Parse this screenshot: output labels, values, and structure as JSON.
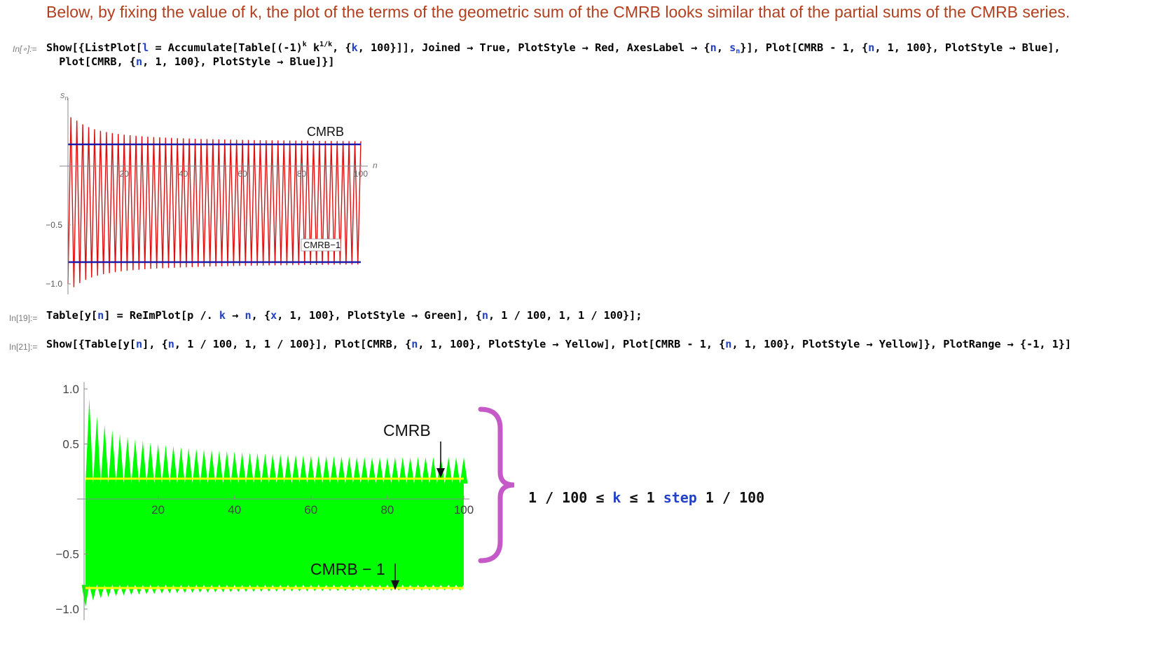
{
  "notebook": {
    "description": "Below, by fixing the value of k, the plot of the terms of the geometric sum of the CMRB looks similar that of the partial sums of the CMRB series.",
    "cells": {
      "c1_label": "In[∘]:=",
      "c2_label": "In[19]:=",
      "c3_label": "In[21]:="
    }
  },
  "plot1": {
    "y_axis_label": "s",
    "y_axis_label_sub": "n",
    "x_axis_label": "n",
    "cmrb_label": "CMRB",
    "cmrb1_label": "CMRB−1",
    "x_ticks": [
      "20",
      "40",
      "60",
      "80",
      "100"
    ],
    "y_ticks": [
      "−0.5",
      "−1.0"
    ]
  },
  "plot2": {
    "x_ticks": [
      "20",
      "40",
      "60",
      "80",
      "100"
    ],
    "y_ticks": [
      "1.0",
      "0.5",
      "−0.5",
      "−1.0"
    ],
    "cmrb_label": "CMRB",
    "cmrb1_label": "CMRB − 1"
  },
  "annotation": {
    "range_text": "1 / 100 ≤ ",
    "k": "k",
    "middle_text": " ≤ 1 ",
    "step_word": "step",
    "end_text": " 1 / 100",
    "brace_color": "#c659c8"
  },
  "colors": {
    "text_cell": "#b2401f",
    "red_series": "#e01010",
    "blue_line": "#1a1aa8",
    "green_fill": "#00ff00",
    "yellow_line": "#ffff00",
    "symbol_blue": "#2341c4"
  },
  "chart_data": [
    {
      "type": "line",
      "series": [
        {
          "name": "",
          "values": "alternating partial sums s_n for n = 1..100"
        }
      ],
      "cmrb": 0.1878596,
      "cmrb_minus_1": -0.8121404,
      "xlabel": "n",
      "ylabel": "s_n",
      "xlim": [
        1,
        100
      ],
      "ylim": [
        -1.0,
        0.2
      ]
    },
    {
      "type": "area",
      "cmrb": 0.1878596,
      "cmrb_minus_1": -0.8121404,
      "xlim": [
        1,
        100
      ],
      "ylim": [
        -1,
        1
      ]
    }
  ]
}
